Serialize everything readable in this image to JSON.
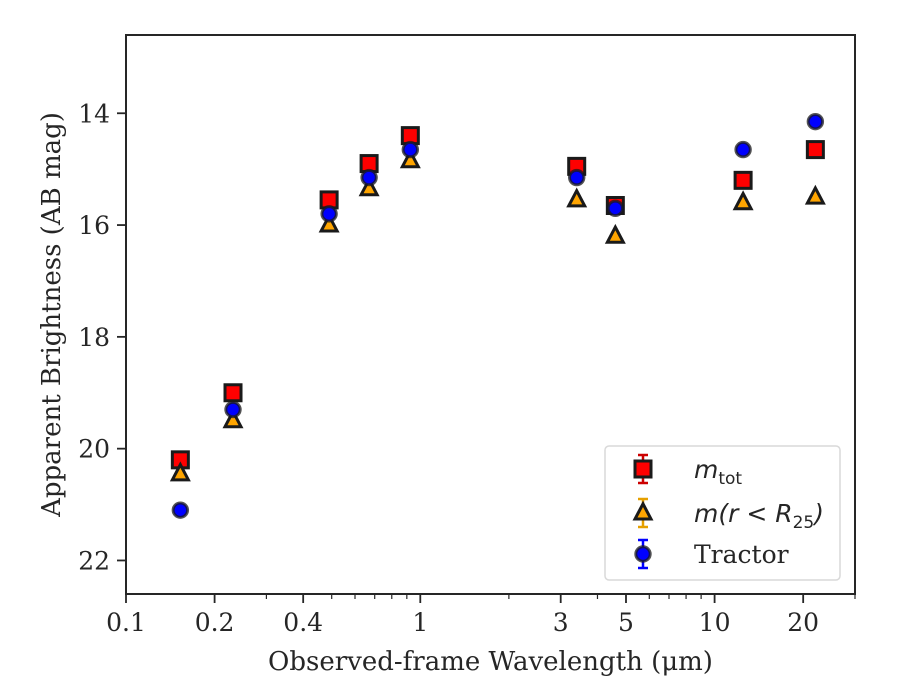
{
  "chart_data": {
    "type": "scatter",
    "xlabel": "Observed-frame Wavelength (μm)",
    "ylabel": "Apparent Brightness (AB mag)",
    "xscale": "log",
    "xlim": [
      0.1,
      30
    ],
    "ylim": [
      22.6,
      12.6
    ],
    "y_inverted": true,
    "x_ticks": [
      {
        "value": 0.1,
        "label": "0.1"
      },
      {
        "value": 0.2,
        "label": "0.2"
      },
      {
        "value": 0.4,
        "label": "0.4"
      },
      {
        "value": 1,
        "label": "1"
      },
      {
        "value": 3,
        "label": "3"
      },
      {
        "value": 5,
        "label": "5"
      },
      {
        "value": 10,
        "label": "10"
      },
      {
        "value": 20,
        "label": "20"
      }
    ],
    "y_ticks": [
      14,
      16,
      18,
      20,
      22
    ],
    "grid": false,
    "legend_position": "lower-right",
    "series": [
      {
        "name": "m_tot",
        "legend_main": "m",
        "legend_sub": "tot",
        "marker": "square",
        "color": "#ff0000",
        "edge": "#1a1a1a",
        "errcolor": "#cc0000",
        "x": [
          0.153,
          0.231,
          0.49,
          0.67,
          0.925,
          3.4,
          4.6,
          12.5,
          22.0
        ],
        "y": [
          20.2,
          19.0,
          15.55,
          14.9,
          14.4,
          14.95,
          15.65,
          15.2,
          14.65
        ]
      },
      {
        "name": "m(r < R_25)",
        "legend_main": "m(r < R",
        "legend_sub": "25",
        "legend_tail": ")",
        "marker": "triangle",
        "color": "#ffa500",
        "edge": "#1a1a1a",
        "errcolor": "#e6a000",
        "x": [
          0.153,
          0.231,
          0.49,
          0.67,
          0.925,
          3.4,
          4.6,
          12.5,
          22.0
        ],
        "y": [
          20.45,
          19.5,
          16.0,
          15.35,
          14.85,
          15.55,
          16.2,
          15.6,
          15.5
        ]
      },
      {
        "name": "Tractor",
        "legend_main": "Tractor",
        "marker": "circle",
        "color": "#0000ff",
        "edge": "#1a1a1a",
        "errcolor": "#0000ff",
        "x": [
          0.153,
          0.231,
          0.49,
          0.67,
          0.925,
          3.4,
          4.6,
          12.5,
          22.0
        ],
        "y": [
          21.1,
          19.3,
          15.8,
          15.15,
          14.65,
          15.15,
          15.7,
          14.65,
          14.15
        ]
      }
    ]
  }
}
